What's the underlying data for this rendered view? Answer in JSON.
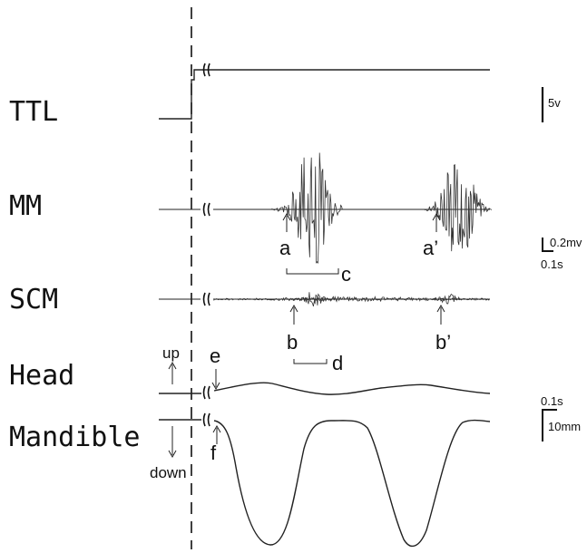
{
  "rows": {
    "ttl": "TTL",
    "mm": "MM",
    "scm": "SCM",
    "head": "Head",
    "mandible": "Mandible"
  },
  "markers": {
    "a": "a",
    "a_prime": "a’",
    "b": "b",
    "b_prime": "b’",
    "c": "c",
    "d": "d",
    "e": "e",
    "f": "f"
  },
  "directions": {
    "up": "up",
    "down": "down"
  },
  "scale_bars": {
    "voltage_ttl": "5v",
    "voltage_emg": "0.2mv",
    "time_emg": "0.1s",
    "time_motion": "0.1s",
    "distance_motion": "10mm"
  }
}
